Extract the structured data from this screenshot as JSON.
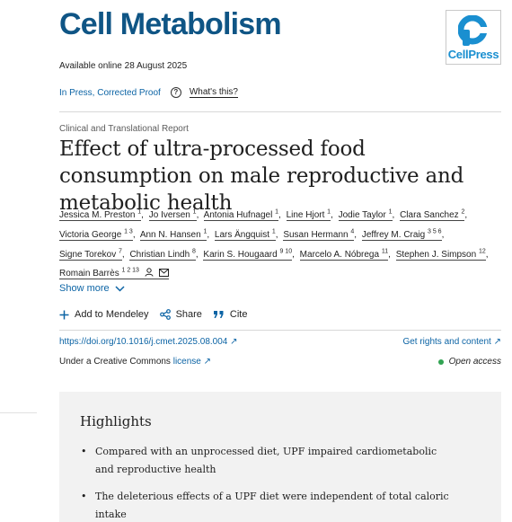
{
  "journal": {
    "title": "Cell Metabolism",
    "publisher_logo_text": "CellPress"
  },
  "availability": "Available online 28 August 2025",
  "status": {
    "label": "In Press, Corrected Proof",
    "help_icon_glyph": "?",
    "whats_this": "What's this?"
  },
  "article": {
    "type": "Clinical and Translational Report",
    "title": "Effect of ultra-processed food consumption on male reproductive and metabolic health"
  },
  "authors": [
    {
      "name": "Jessica M. Preston",
      "sup": "1"
    },
    {
      "name": "Jo Iversen",
      "sup": "1"
    },
    {
      "name": "Antonia Hufnagel",
      "sup": "1"
    },
    {
      "name": "Line Hjort",
      "sup": "1"
    },
    {
      "name": "Jodie Taylor",
      "sup": "1"
    },
    {
      "name": "Clara Sanchez",
      "sup": "2"
    },
    {
      "name": "Victoria George",
      "sup": "1 3"
    },
    {
      "name": "Ann N. Hansen",
      "sup": "1"
    },
    {
      "name": "Lars Ängquist",
      "sup": "1"
    },
    {
      "name": "Susan Hermann",
      "sup": "4"
    },
    {
      "name": "Jeffrey M. Craig",
      "sup": "3 5 6"
    },
    {
      "name": "Signe Torekov",
      "sup": "7"
    },
    {
      "name": "Christian Lindh",
      "sup": "8"
    },
    {
      "name": "Karin S. Hougaard",
      "sup": "9 10"
    },
    {
      "name": "Marcelo A. Nóbrega",
      "sup": "11"
    },
    {
      "name": "Stephen J. Simpson",
      "sup": "12"
    },
    {
      "name": "Romain Barrès",
      "sup": "1 2 13"
    }
  ],
  "show_more": "Show more",
  "actions": {
    "mendeley": "Add to Mendeley",
    "share": "Share",
    "cite": "Cite"
  },
  "doi": "https://doi.org/10.1016/j.cmet.2025.08.004 ↗",
  "rights": "Get rights and content ↗",
  "license": {
    "prefix": "Under a Creative Commons ",
    "link": "license ↗"
  },
  "open_access": "Open access",
  "highlights": {
    "heading": "Highlights",
    "items": [
      "Compared with an unprocessed diet, UPF impaired cardiometabolic and reproductive health",
      "The deleterious effects of a UPF diet were independent of total caloric intake"
    ]
  },
  "icons": [
    "cellpress-logo-icon",
    "help-icon",
    "person-icon",
    "envelope-icon",
    "chevron-down-icon",
    "plus-icon",
    "share-icon",
    "quote-icon"
  ],
  "colors": {
    "journal_blue": "#0f5585",
    "link_blue": "#0c64a5",
    "open_access_green": "#31a352",
    "cellpress_blue": "#1a8fd0"
  }
}
